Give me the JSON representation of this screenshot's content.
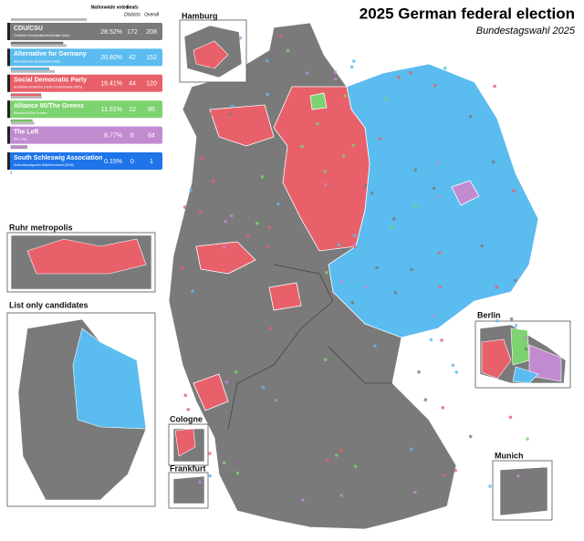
{
  "title": "2025 German federal election",
  "subtitle": "Bundestagswahl 2025",
  "legend": {
    "header": {
      "votes": "Nationwide votes",
      "seats": "Seats",
      "districts": "Districts",
      "overall": "Overall"
    },
    "parties": [
      {
        "name": "CDU/CSU",
        "long_name": "Christlich Demokratische/Soziale Union",
        "color": "#7a7a7a",
        "vote": 28.52,
        "vote_label": "28.52%",
        "districts": 172,
        "overall": 208
      },
      {
        "name": "Alternative for Germany",
        "long_name": "Alternative für Deutschland (AfD)",
        "color": "#5bbcf0",
        "vote": 20.8,
        "vote_label": "20.80%",
        "districts": 42,
        "overall": 152
      },
      {
        "name": "Social Democratic Party",
        "long_name": "Sozialdemokratische Partei Deutschlands (SPD)",
        "color": "#e8606a",
        "vote": 16.41,
        "vote_label": "16.41%",
        "districts": 44,
        "overall": 120
      },
      {
        "name": "Alliance 90/The Greens",
        "long_name": "Bündnis 90/Die Grünen",
        "color": "#7dd36f",
        "vote": 11.61,
        "vote_label": "11.61%",
        "districts": 12,
        "overall": 85
      },
      {
        "name": "The Left",
        "long_name": "Die Linke",
        "color": "#c28bd0",
        "vote": 8.77,
        "vote_label": "8.77%",
        "districts": 6,
        "overall": 64
      },
      {
        "name": "South Schleswig Association",
        "long_name": "Südschleswigscher Wählerverband (SSW)",
        "color": "#1e74e8",
        "vote": 0.15,
        "vote_label": "0.15%",
        "districts": 0,
        "overall": 1
      }
    ]
  },
  "insets": {
    "hamburg": "Hamburg",
    "ruhr": "Ruhr metropolis",
    "list_only": "List only candidates",
    "berlin": "Berlin",
    "cologne": "Cologne",
    "frankfurt": "Frankfurt",
    "munich": "Munich"
  }
}
